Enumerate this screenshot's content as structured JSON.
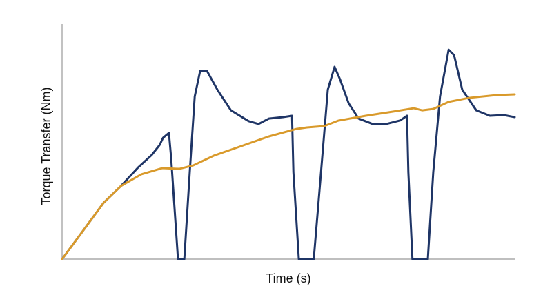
{
  "chart_data": {
    "type": "line",
    "x_label": "Time (s)",
    "y_label": "Torque Transfer (Nm)",
    "xlim": [
      0,
      100
    ],
    "ylim": [
      0,
      100
    ],
    "series": [
      {
        "color": "#1f3566",
        "x": [
          0,
          4.6,
          9.1,
          13.0,
          16.8,
          19.8,
          21.6,
          22.3,
          23.6,
          24.1,
          25.6,
          27.0,
          28.2,
          29.3,
          30.5,
          32.0,
          34.3,
          37.3,
          41.2,
          43.4,
          45.7,
          48.8,
          50.8,
          51.1,
          52.3,
          55.6,
          57.2,
          58.7,
          60.2,
          61.4,
          63.3,
          65.5,
          68.6,
          71.6,
          74.7,
          76.2,
          76.5,
          77.4,
          80.8,
          82.0,
          83.5,
          85.4,
          86.6,
          88.4,
          91.5,
          94.5,
          97.6,
          100
        ],
        "values": [
          0,
          12.0,
          23.8,
          31.1,
          39.0,
          44.3,
          48.7,
          51.6,
          53.7,
          42.8,
          0,
          0,
          37.0,
          69.2,
          80.1,
          80.1,
          72.1,
          63.3,
          58.7,
          57.5,
          59.8,
          60.4,
          61.0,
          37.0,
          0,
          0,
          37.0,
          72.1,
          81.8,
          76.5,
          66.3,
          59.8,
          57.5,
          57.5,
          59.0,
          61.0,
          37.0,
          0,
          0,
          37.0,
          69.2,
          89.1,
          86.8,
          72.1,
          63.3,
          61.0,
          61.3,
          60.4
        ]
      },
      {
        "color": "#d99a2b",
        "x": [
          0,
          4.6,
          9.1,
          13.0,
          17.5,
          22.1,
          25.9,
          29.0,
          33.5,
          39.6,
          45.7,
          51.8,
          54.1,
          57.9,
          61.0,
          67.1,
          73.2,
          77.7,
          79.6,
          82.0,
          85.4,
          89.9,
          96.0,
          100
        ],
        "values": [
          0,
          12.0,
          23.8,
          31.1,
          36.1,
          38.7,
          38.4,
          39.9,
          44.0,
          48.1,
          52.2,
          55.4,
          56.0,
          56.6,
          58.9,
          61.0,
          62.8,
          64.2,
          63.3,
          63.9,
          66.9,
          68.6,
          69.8,
          70.1
        ]
      }
    ]
  }
}
